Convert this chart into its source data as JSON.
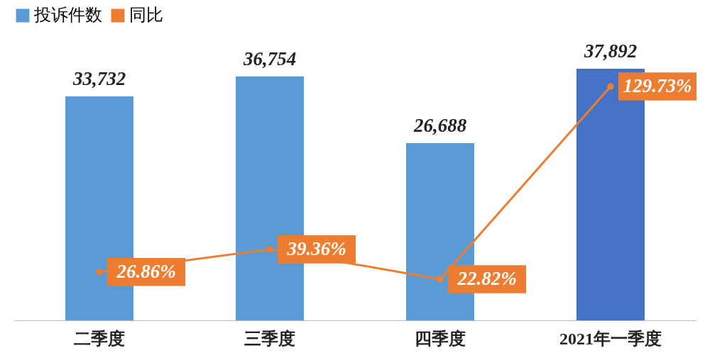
{
  "chart_data": {
    "type": "bar",
    "categories": [
      "二季度",
      "三季度",
      "四季度",
      "2021年一季度"
    ],
    "series": [
      {
        "name": "投诉件数",
        "color": "#5b9bd5",
        "colors": [
          "#5b9bd5",
          "#5b9bd5",
          "#5b9bd5",
          "#4472c4"
        ],
        "values": [
          33732,
          36754,
          26688,
          37892
        ],
        "value_labels": [
          "33,732",
          "36,754",
          "26,688",
          "37,892"
        ]
      },
      {
        "name": "同比",
        "type": "line",
        "axis": "y2",
        "color": "#ed7d31",
        "marker": "circle",
        "values": [
          26.86,
          39.36,
          22.82,
          129.73
        ],
        "value_labels": [
          "26.86%",
          "39.36%",
          "22.82%",
          "129.73%"
        ]
      }
    ],
    "tick_labels": "x",
    "legend": "top"
  }
}
